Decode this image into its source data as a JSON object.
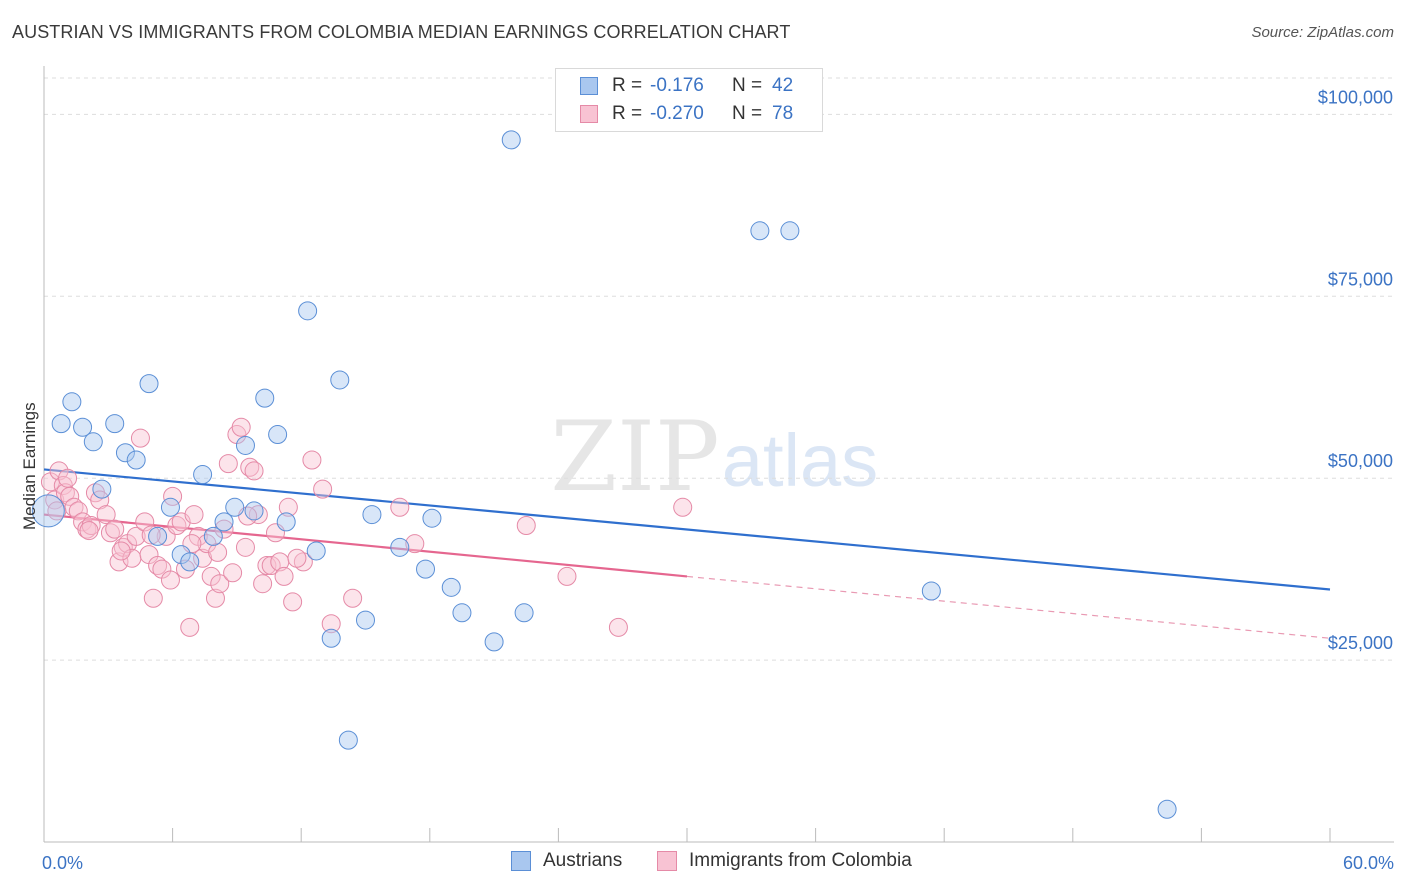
{
  "header": {
    "title": "AUSTRIAN VS IMMIGRANTS FROM COLOMBIA MEDIAN EARNINGS CORRELATION CHART",
    "source": "Source: ZipAtlas.com"
  },
  "watermark": {
    "zip": "ZIP",
    "atlas": "atlas"
  },
  "legend_top": {
    "rows": [
      {
        "label": "R =",
        "r": "-0.176",
        "n_label": "N =",
        "n": "42",
        "color": "#a9c7ef",
        "border": "#5b8fd6"
      },
      {
        "label": "R =",
        "r": "-0.270",
        "n_label": "N =",
        "n": "78",
        "color": "#f8c3d3",
        "border": "#e58aa7"
      }
    ]
  },
  "legend_bottom": {
    "items": [
      {
        "label": "Austrians",
        "color": "#a9c7ef",
        "border": "#5b8fd6"
      },
      {
        "label": "Immigrants from Colombia",
        "color": "#f8c3d3",
        "border": "#e58aa7"
      }
    ]
  },
  "chart_data": {
    "type": "scatter",
    "title": "AUSTRIAN VS IMMIGRANTS FROM COLOMBIA MEDIAN EARNINGS CORRELATION CHART",
    "xlabel": "",
    "ylabel": "Median Earnings",
    "xlim": [
      0,
      60
    ],
    "ylim": [
      0,
      105000
    ],
    "x_tick_labels": [
      "0.0%",
      "60.0%"
    ],
    "y_ticks": [
      25000,
      50000,
      75000,
      100000
    ],
    "y_tick_labels": [
      "$25,000",
      "$50,000",
      "$75,000",
      "$100,000"
    ],
    "grid": true,
    "legend_position": "top-center",
    "colors": {
      "austrians": "#5b8fd6",
      "colombia": "#e8789c",
      "axis_text": "#3b73c4"
    },
    "series": [
      {
        "name": "Austrians",
        "points": [
          [
            0.2,
            45500
          ],
          [
            0.8,
            57500
          ],
          [
            1.3,
            60500
          ],
          [
            1.8,
            57000
          ],
          [
            2.3,
            55000
          ],
          [
            2.7,
            48500
          ],
          [
            3.3,
            57500
          ],
          [
            3.8,
            53500
          ],
          [
            4.3,
            52500
          ],
          [
            4.9,
            63000
          ],
          [
            5.3,
            42000
          ],
          [
            5.9,
            46000
          ],
          [
            6.4,
            39500
          ],
          [
            6.8,
            38500
          ],
          [
            7.4,
            50500
          ],
          [
            7.9,
            42000
          ],
          [
            8.4,
            44000
          ],
          [
            8.9,
            46000
          ],
          [
            9.4,
            54500
          ],
          [
            9.8,
            45500
          ],
          [
            10.3,
            61000
          ],
          [
            10.9,
            56000
          ],
          [
            11.3,
            44000
          ],
          [
            12.3,
            73000
          ],
          [
            12.7,
            40000
          ],
          [
            13.4,
            28000
          ],
          [
            13.8,
            63500
          ],
          [
            14.2,
            14000
          ],
          [
            15.0,
            30500
          ],
          [
            15.3,
            45000
          ],
          [
            16.6,
            40500
          ],
          [
            17.8,
            37500
          ],
          [
            18.1,
            44500
          ],
          [
            19.0,
            35000
          ],
          [
            19.5,
            31500
          ],
          [
            21.0,
            27500
          ],
          [
            21.8,
            96500
          ],
          [
            22.4,
            31500
          ],
          [
            33.4,
            84000
          ],
          [
            34.8,
            84000
          ],
          [
            41.4,
            34500
          ],
          [
            52.4,
            4500
          ]
        ]
      },
      {
        "name": "Immigrants from Colombia",
        "points": [
          [
            0.3,
            49500
          ],
          [
            0.5,
            47000
          ],
          [
            0.7,
            51000
          ],
          [
            0.9,
            49000
          ],
          [
            1.0,
            48000
          ],
          [
            1.2,
            47500
          ],
          [
            1.4,
            46000
          ],
          [
            1.6,
            45500
          ],
          [
            1.8,
            44000
          ],
          [
            2.0,
            43000
          ],
          [
            2.2,
            43500
          ],
          [
            2.4,
            48000
          ],
          [
            2.6,
            47000
          ],
          [
            2.9,
            45000
          ],
          [
            3.1,
            42500
          ],
          [
            3.3,
            43000
          ],
          [
            3.5,
            38500
          ],
          [
            3.7,
            40500
          ],
          [
            3.9,
            41000
          ],
          [
            4.1,
            39000
          ],
          [
            4.3,
            42000
          ],
          [
            4.5,
            55500
          ],
          [
            4.7,
            44000
          ],
          [
            4.9,
            39500
          ],
          [
            5.1,
            33500
          ],
          [
            5.3,
            38000
          ],
          [
            5.5,
            37500
          ],
          [
            5.7,
            42000
          ],
          [
            5.9,
            36000
          ],
          [
            6.0,
            47500
          ],
          [
            6.2,
            43500
          ],
          [
            6.4,
            44000
          ],
          [
            6.6,
            37500
          ],
          [
            6.8,
            29500
          ],
          [
            7.0,
            45000
          ],
          [
            7.2,
            42000
          ],
          [
            7.4,
            39000
          ],
          [
            7.6,
            41000
          ],
          [
            7.8,
            36500
          ],
          [
            8.0,
            33500
          ],
          [
            8.2,
            35500
          ],
          [
            8.4,
            43000
          ],
          [
            8.6,
            52000
          ],
          [
            8.8,
            37000
          ],
          [
            9.0,
            56000
          ],
          [
            9.2,
            57000
          ],
          [
            9.4,
            40500
          ],
          [
            9.6,
            51500
          ],
          [
            9.8,
            51000
          ],
          [
            10.0,
            45000
          ],
          [
            10.2,
            35500
          ],
          [
            10.4,
            38000
          ],
          [
            10.6,
            38000
          ],
          [
            10.8,
            42500
          ],
          [
            11.0,
            38500
          ],
          [
            11.2,
            36500
          ],
          [
            11.4,
            46000
          ],
          [
            11.6,
            33000
          ],
          [
            12.1,
            38500
          ],
          [
            12.5,
            52500
          ],
          [
            13.0,
            48500
          ],
          [
            13.4,
            30000
          ],
          [
            14.4,
            33500
          ],
          [
            16.6,
            46000
          ],
          [
            17.3,
            41000
          ],
          [
            22.5,
            43500
          ],
          [
            24.4,
            36500
          ],
          [
            26.8,
            29500
          ],
          [
            29.8,
            46000
          ],
          [
            0.6,
            45500
          ],
          [
            1.1,
            50000
          ],
          [
            2.1,
            42800
          ],
          [
            3.6,
            40000
          ],
          [
            5.0,
            42200
          ],
          [
            6.9,
            41000
          ],
          [
            8.1,
            39800
          ],
          [
            9.5,
            44800
          ],
          [
            11.8,
            39000
          ]
        ]
      }
    ],
    "trendlines": [
      {
        "series": "Austrians",
        "x": [
          0,
          60
        ],
        "y": [
          51200,
          34700
        ],
        "style": "solid"
      },
      {
        "series": "Immigrants from Colombia",
        "x_solid": [
          0,
          30
        ],
        "y_solid": [
          45000,
          36500
        ],
        "x_dashed": [
          30,
          60
        ],
        "y_dashed": [
          36500,
          28000
        ],
        "style": "solid-then-dashed"
      }
    ]
  }
}
